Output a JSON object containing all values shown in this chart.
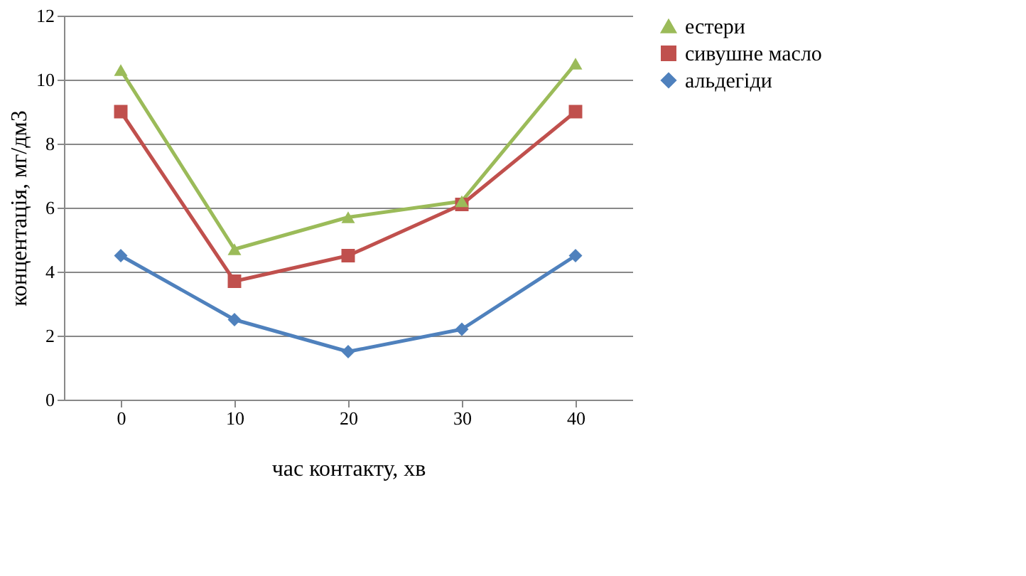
{
  "chart_data": {
    "type": "line",
    "xlabel": "час контакту, хв",
    "ylabel": "концентація, мг/дм3",
    "categories": [
      "0",
      "10",
      "20",
      "30",
      "40"
    ],
    "series": [
      {
        "name": "естери",
        "color": "#9bbb59",
        "marker": "triangle",
        "values": [
          10.3,
          4.7,
          5.7,
          6.2,
          10.5
        ]
      },
      {
        "name": "сивушне масло",
        "color": "#c0504d",
        "marker": "square",
        "values": [
          9,
          3.7,
          4.5,
          6.1,
          9
        ]
      },
      {
        "name": "альдегіди",
        "color": "#4f81bd",
        "marker": "diamond",
        "values": [
          4.5,
          2.5,
          1.5,
          2.2,
          4.5
        ]
      }
    ],
    "ylim": [
      0,
      12
    ],
    "yticks": [
      0,
      2,
      4,
      6,
      8,
      10,
      12
    ],
    "grid": "y",
    "legend": "right",
    "line_style": "solid"
  }
}
